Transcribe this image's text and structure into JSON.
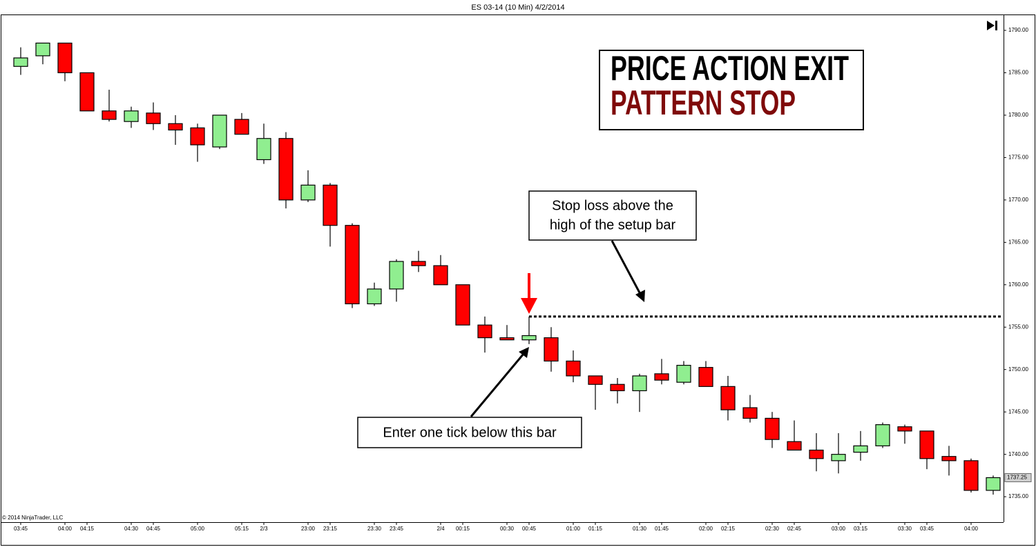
{
  "chart_data": {
    "type": "candlestick",
    "title": "ES 03-14 (10 Min)  4/2/2014",
    "categories": [
      "03:45",
      null,
      "04:00",
      "04:15",
      null,
      "04:30",
      "04:45",
      null,
      "05:00",
      null,
      "05:15",
      "2/3",
      null,
      "23:00",
      "23:15",
      null,
      "23:30",
      "23:45",
      null,
      "2/4",
      "00:15",
      null,
      "00:30",
      "00:45",
      null,
      "01:00",
      "01:15",
      null,
      "01:30",
      "01:45",
      null,
      "02:00",
      "02:15",
      null,
      "02:30",
      "02:45",
      null,
      "03:00",
      "03:15",
      null,
      "03:30",
      "03:45",
      null,
      "04:00",
      null
    ],
    "open": [
      1785.75,
      1787,
      1788.5,
      1785,
      1780.5,
      1779.25,
      1780.25,
      1779,
      1778.5,
      1776.25,
      1779.5,
      1774.75,
      1777.25,
      1770,
      1771.75,
      1767,
      1757.75,
      1759.5,
      1762.75,
      1762.25,
      1760,
      1755.25,
      1753.75,
      1753.5,
      1753.75,
      1751,
      1749.25,
      1748.25,
      1747.5,
      1749.5,
      1748.5,
      1750.25,
      1748,
      1745.5,
      1744.25,
      1741.5,
      1740.5,
      1739.25,
      1740.25,
      1741,
      1743.25,
      1742.75,
      1739.75,
      1739.25,
      1735.75
    ],
    "high": [
      1788,
      1788.5,
      1788.5,
      1785,
      1783,
      1781,
      1781.5,
      1780,
      1779,
      1780,
      1780.25,
      1779,
      1778,
      1773.5,
      1772,
      1767.25,
      1760.25,
      1763,
      1764,
      1763.5,
      1760,
      1756.25,
      1755.25,
      1756.25,
      1755,
      1752.25,
      1749.25,
      1749,
      1749.5,
      1751.25,
      1751,
      1751,
      1749.25,
      1747,
      1745,
      1744,
      1742.5,
      1742.5,
      1742.75,
      1743.75,
      1743.5,
      1742.75,
      1741,
      1739.5,
      1737.5
    ],
    "low": [
      1784.75,
      1786,
      1784,
      1780.5,
      1779.25,
      1778.5,
      1778.25,
      1776.5,
      1774.5,
      1776,
      1777.75,
      1774.25,
      1769,
      1769.75,
      1764.5,
      1757.25,
      1757.5,
      1758,
      1761.5,
      1760,
      1755.25,
      1752,
      1753.5,
      1753,
      1749.75,
      1748.5,
      1745.25,
      1746,
      1745,
      1748.25,
      1748.25,
      1748,
      1744,
      1743.75,
      1740.75,
      1740.5,
      1738,
      1737.75,
      1739.25,
      1740.75,
      1741.25,
      1738.25,
      1737.5,
      1735.5,
      1735.25
    ],
    "close": [
      1786.75,
      1788.5,
      1785,
      1780.5,
      1779.5,
      1780.5,
      1779,
      1778.25,
      1776.5,
      1780,
      1777.75,
      1777.25,
      1770,
      1771.75,
      1767,
      1757.75,
      1759.5,
      1762.75,
      1762.25,
      1760,
      1755.25,
      1753.75,
      1753.5,
      1754,
      1751,
      1749.25,
      1748.25,
      1747.5,
      1749.25,
      1748.75,
      1750.5,
      1748,
      1745.25,
      1744.25,
      1741.75,
      1740.5,
      1739.5,
      1740,
      1741,
      1743.5,
      1742.75,
      1739.5,
      1739.25,
      1735.75,
      1737.25
    ],
    "up_color": "#90ee90",
    "down_color": "#ff0000",
    "ylim": [
      1732,
      1791.75
    ],
    "yticks": [
      {
        "value": 1735,
        "label": "1735.00"
      },
      {
        "value": 1740,
        "label": "1740.00"
      },
      {
        "value": 1745,
        "label": "1745.00"
      },
      {
        "value": 1750,
        "label": "1750.00"
      },
      {
        "value": 1755,
        "label": "1755.00"
      },
      {
        "value": 1760,
        "label": "1760.00"
      },
      {
        "value": 1765,
        "label": "1765.00"
      },
      {
        "value": 1770,
        "label": "1770.00"
      },
      {
        "value": 1775,
        "label": "1775.00"
      },
      {
        "value": 1780,
        "label": "1780.00"
      },
      {
        "value": 1785,
        "label": "1785.00"
      },
      {
        "value": 1790,
        "label": "1790.00"
      }
    ],
    "last_price": {
      "value": 1737.25,
      "label": "1737.25"
    },
    "stop_level": 1756.25,
    "copyright": "© 2014 NinjaTrader, LLC",
    "headline": [
      "PRICE ACTION EXIT",
      "PATTERN STOP"
    ],
    "annotations": {
      "stop_note": [
        "Stop loss above the",
        "high of the setup bar"
      ],
      "entry_note": "Enter one tick below this bar"
    }
  }
}
